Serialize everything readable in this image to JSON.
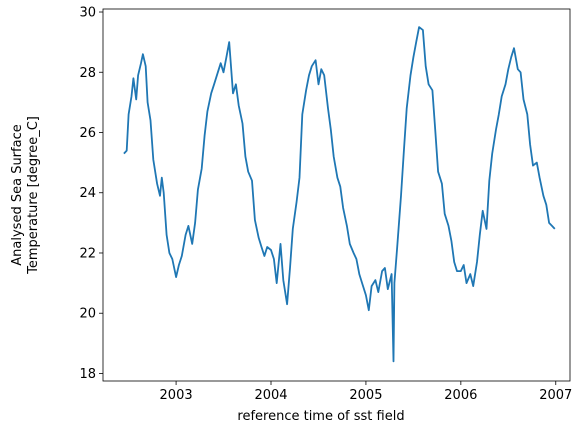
{
  "chart_data": {
    "type": "line",
    "title": "",
    "xlabel": "reference time of sst field",
    "ylabel_lines": [
      "Analysed Sea Surface",
      "Temperature [degree_C]"
    ],
    "x_ticks": [
      "2003",
      "2004",
      "2005",
      "2006",
      "2007"
    ],
    "x_tick_values": [
      2003.0,
      2004.0,
      2005.0,
      2006.0,
      2007.0
    ],
    "y_ticks": [
      "18",
      "20",
      "22",
      "24",
      "26",
      "28",
      "30"
    ],
    "y_tick_values": [
      18,
      20,
      22,
      24,
      26,
      28,
      30
    ],
    "xlim": [
      2002.23,
      2007.15
    ],
    "ylim": [
      17.75,
      30.1
    ],
    "grid": false,
    "line_color": "#1f77b4",
    "series": [
      {
        "x": [
          2002.45,
          2002.48,
          2002.5,
          2002.53,
          2002.55,
          2002.58,
          2002.6,
          2002.63,
          2002.65,
          2002.68,
          2002.7,
          2002.73,
          2002.76,
          2002.8,
          2002.83,
          2002.85,
          2002.87,
          2002.9,
          2002.93,
          2002.96,
          2003.0,
          2003.03,
          2003.06,
          2003.1,
          2003.13,
          2003.17,
          2003.2,
          2003.23,
          2003.27,
          2003.3,
          2003.33,
          2003.37,
          2003.4,
          2003.43,
          2003.47,
          2003.5,
          2003.53,
          2003.56,
          2003.6,
          2003.63,
          2003.66,
          2003.7,
          2003.73,
          2003.76,
          2003.8,
          2003.83,
          2003.87,
          2003.9,
          2003.93,
          2003.96,
          2004.0,
          2004.03,
          2004.06,
          2004.1,
          2004.13,
          2004.17,
          2004.2,
          2004.23,
          2004.27,
          2004.3,
          2004.33,
          2004.37,
          2004.4,
          2004.43,
          2004.47,
          2004.5,
          2004.53,
          2004.56,
          2004.6,
          2004.63,
          2004.66,
          2004.7,
          2004.73,
          2004.76,
          2004.8,
          2004.83,
          2004.87,
          2004.9,
          2004.93,
          2004.96,
          2005.0,
          2005.03,
          2005.06,
          2005.1,
          2005.13,
          2005.17,
          2005.2,
          2005.23,
          2005.27,
          2005.29,
          2005.3,
          2005.33,
          2005.37,
          2005.4,
          2005.43,
          2005.47,
          2005.5,
          2005.53,
          2005.56,
          2005.6,
          2005.63,
          2005.66,
          2005.7,
          2005.73,
          2005.76,
          2005.8,
          2005.83,
          2005.87,
          2005.9,
          2005.93,
          2005.96,
          2006.0,
          2006.03,
          2006.06,
          2006.1,
          2006.13,
          2006.17,
          2006.2,
          2006.23,
          2006.27,
          2006.3,
          2006.33,
          2006.37,
          2006.4,
          2006.43,
          2006.47,
          2006.5,
          2006.53,
          2006.56,
          2006.6,
          2006.63,
          2006.66,
          2006.7,
          2006.73,
          2006.76,
          2006.8,
          2006.83,
          2006.87,
          2006.9,
          2006.93,
          2006.96,
          2006.99
        ],
        "values": [
          25.3,
          25.4,
          26.6,
          27.2,
          27.8,
          27.1,
          27.9,
          28.3,
          28.6,
          28.2,
          27.0,
          26.4,
          25.1,
          24.3,
          23.9,
          24.5,
          24.0,
          22.6,
          22.0,
          21.8,
          21.2,
          21.6,
          21.9,
          22.6,
          22.9,
          22.3,
          23.0,
          24.1,
          24.8,
          25.9,
          26.7,
          27.3,
          27.6,
          27.9,
          28.3,
          28.0,
          28.5,
          29.0,
          27.3,
          27.6,
          26.9,
          26.3,
          25.2,
          24.7,
          24.4,
          23.1,
          22.5,
          22.2,
          21.9,
          22.2,
          22.1,
          21.8,
          21.0,
          22.3,
          21.1,
          20.3,
          21.5,
          22.8,
          23.7,
          24.5,
          26.6,
          27.4,
          27.9,
          28.2,
          28.4,
          27.6,
          28.1,
          27.9,
          26.8,
          26.1,
          25.2,
          24.5,
          24.2,
          23.5,
          22.9,
          22.3,
          22.0,
          21.8,
          21.3,
          21.0,
          20.6,
          20.1,
          20.9,
          21.1,
          20.7,
          21.4,
          21.5,
          20.8,
          21.3,
          18.4,
          21.0,
          22.2,
          23.9,
          25.4,
          26.8,
          27.9,
          28.5,
          29.0,
          29.5,
          29.4,
          28.2,
          27.6,
          27.4,
          26.1,
          24.7,
          24.3,
          23.3,
          22.9,
          22.4,
          21.7,
          21.4,
          21.4,
          21.6,
          21.0,
          21.3,
          20.9,
          21.7,
          22.6,
          23.4,
          22.8,
          24.4,
          25.3,
          26.1,
          26.6,
          27.2,
          27.6,
          28.1,
          28.5,
          28.8,
          28.1,
          28.0,
          27.1,
          26.6,
          25.6,
          24.9,
          25.0,
          24.5,
          23.9,
          23.6,
          23.0,
          22.9,
          22.8
        ]
      }
    ]
  }
}
